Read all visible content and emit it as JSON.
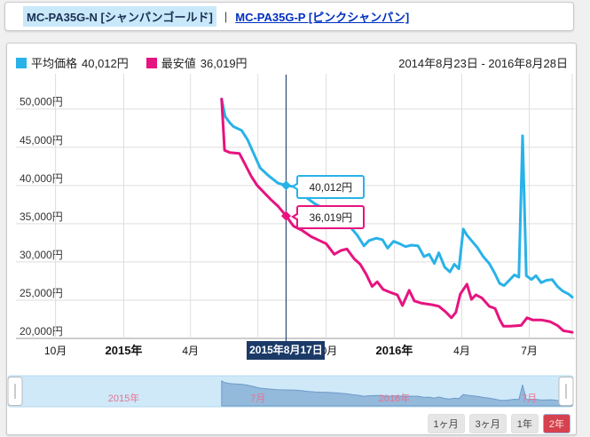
{
  "header": {
    "selected_product": "MC-PA35G-N [シャンパンゴールド]",
    "separator": "|",
    "linked_product": "MC-PA35G-P [ピンクシャンパン]"
  },
  "legend": {
    "average": {
      "label": "平均価格",
      "value": "40,012円",
      "color": "#29b2e8"
    },
    "lowest": {
      "label": "最安値",
      "value": "36,019円",
      "color": "#e7137f"
    }
  },
  "date_range": "2014年8月23日 - 2016年8月28日",
  "tooltips": {
    "average_price": "40,012円",
    "lowest_price": "36,019円",
    "date": "2015年8月17日"
  },
  "controls": {
    "period_options": [
      {
        "label": "1ヶ月",
        "active": false
      },
      {
        "label": "3ヶ月",
        "active": false
      },
      {
        "label": "1年",
        "active": false
      },
      {
        "label": "2年",
        "active": true
      }
    ]
  },
  "colors": {
    "average_line": "#29b2e8",
    "lowest_line": "#e7137f",
    "crosshair": "#2c4a70",
    "grid": "#dedede",
    "axis_bottom": "#999999",
    "navigator_bg": "#cfe9f9",
    "navigator_fill": "#93b9db",
    "navigator_line": "#6f9bca",
    "navigator_label": "#e8738f",
    "date_tooltip_bg": "#1c3a68",
    "active_button_bg": "#d6414f"
  },
  "chart_data": {
    "type": "line",
    "x_unit": "days_since_2014-08-23",
    "x_axis": {
      "range_days": [
        0,
        736
      ],
      "start_label": "2014年8月23日",
      "end_label": "2016年8月28日",
      "ticks": [
        {
          "label": "10月",
          "day": 39,
          "year": false
        },
        {
          "label": "2015年",
          "day": 131,
          "year": true
        },
        {
          "label": "4月",
          "day": 221,
          "year": false
        },
        {
          "label": "7月",
          "day": 312,
          "year": false
        },
        {
          "label": "10月",
          "day": 404,
          "year": false
        },
        {
          "label": "2016年",
          "day": 496,
          "year": true
        },
        {
          "label": "4月",
          "day": 587,
          "year": false
        },
        {
          "label": "7月",
          "day": 678,
          "year": false
        }
      ]
    },
    "y_axis": {
      "unit": "円",
      "range": [
        20000,
        54500
      ],
      "ticks": [
        {
          "value": 50000,
          "label": "50,000円"
        },
        {
          "value": 45000,
          "label": "45,000円"
        },
        {
          "value": 40000,
          "label": "40,000円"
        },
        {
          "value": 35000,
          "label": "35,000円"
        },
        {
          "value": 30000,
          "label": "30,000円"
        },
        {
          "value": 25000,
          "label": "25,000円"
        },
        {
          "value": 20000,
          "label": "20,000円"
        }
      ]
    },
    "series": [
      {
        "name": "平均価格",
        "color": "#29b2e8",
        "points": [
          [
            263,
            51300
          ],
          [
            268,
            49000
          ],
          [
            274,
            48200
          ],
          [
            279,
            47700
          ],
          [
            290,
            47200
          ],
          [
            298,
            46000
          ],
          [
            308,
            43800
          ],
          [
            315,
            42300
          ],
          [
            326,
            41300
          ],
          [
            339,
            40300
          ],
          [
            350,
            40012
          ],
          [
            363,
            39800
          ],
          [
            371,
            39200
          ],
          [
            379,
            38300
          ],
          [
            389,
            37600
          ],
          [
            399,
            37100
          ],
          [
            407,
            36900
          ],
          [
            419,
            36200
          ],
          [
            431,
            35400
          ],
          [
            439,
            34300
          ],
          [
            446,
            33500
          ],
          [
            455,
            32100
          ],
          [
            462,
            32800
          ],
          [
            472,
            33100
          ],
          [
            480,
            32900
          ],
          [
            487,
            31800
          ],
          [
            495,
            32700
          ],
          [
            503,
            32400
          ],
          [
            511,
            32000
          ],
          [
            519,
            32200
          ],
          [
            528,
            32100
          ],
          [
            536,
            30700
          ],
          [
            543,
            31000
          ],
          [
            550,
            29800
          ],
          [
            556,
            31200
          ],
          [
            564,
            29300
          ],
          [
            571,
            28700
          ],
          [
            577,
            29700
          ],
          [
            583,
            29100
          ],
          [
            589,
            34300
          ],
          [
            594,
            33500
          ],
          [
            600,
            32800
          ],
          [
            608,
            31900
          ],
          [
            616,
            30700
          ],
          [
            624,
            29800
          ],
          [
            631,
            28600
          ],
          [
            638,
            27200
          ],
          [
            644,
            26900
          ],
          [
            651,
            27600
          ],
          [
            658,
            28300
          ],
          [
            664,
            28000
          ],
          [
            669,
            46500
          ],
          [
            674,
            28200
          ],
          [
            681,
            27700
          ],
          [
            687,
            28200
          ],
          [
            694,
            27300
          ],
          [
            701,
            27600
          ],
          [
            709,
            27700
          ],
          [
            716,
            26800
          ],
          [
            723,
            26200
          ],
          [
            731,
            25800
          ],
          [
            736,
            25400
          ]
        ]
      },
      {
        "name": "最安値",
        "color": "#e7137f",
        "points": [
          [
            263,
            51300
          ],
          [
            267,
            44600
          ],
          [
            274,
            44300
          ],
          [
            287,
            44200
          ],
          [
            294,
            42900
          ],
          [
            303,
            41200
          ],
          [
            311,
            40000
          ],
          [
            320,
            39100
          ],
          [
            329,
            38200
          ],
          [
            339,
            37300
          ],
          [
            350,
            36019
          ],
          [
            360,
            34700
          ],
          [
            372,
            34100
          ],
          [
            384,
            33300
          ],
          [
            395,
            32800
          ],
          [
            404,
            32400
          ],
          [
            415,
            31000
          ],
          [
            424,
            31500
          ],
          [
            432,
            31700
          ],
          [
            442,
            30400
          ],
          [
            450,
            29700
          ],
          [
            458,
            28400
          ],
          [
            466,
            26800
          ],
          [
            473,
            27400
          ],
          [
            481,
            26400
          ],
          [
            491,
            26000
          ],
          [
            500,
            25700
          ],
          [
            507,
            24300
          ],
          [
            516,
            26300
          ],
          [
            523,
            24900
          ],
          [
            533,
            24600
          ],
          [
            547,
            24400
          ],
          [
            556,
            24200
          ],
          [
            565,
            23500
          ],
          [
            573,
            22700
          ],
          [
            579,
            23400
          ],
          [
            585,
            25800
          ],
          [
            594,
            27100
          ],
          [
            600,
            25100
          ],
          [
            606,
            25700
          ],
          [
            614,
            25300
          ],
          [
            624,
            24200
          ],
          [
            632,
            23900
          ],
          [
            638,
            22500
          ],
          [
            643,
            21600
          ],
          [
            652,
            21600
          ],
          [
            667,
            21700
          ],
          [
            675,
            22700
          ],
          [
            683,
            22400
          ],
          [
            695,
            22400
          ],
          [
            706,
            22200
          ],
          [
            716,
            21700
          ],
          [
            724,
            21000
          ],
          [
            731,
            20900
          ],
          [
            736,
            20800
          ]
        ]
      }
    ],
    "crosshair": {
      "day": 350,
      "date": "2015年8月17日",
      "average_value": 40012,
      "lowest_value": 36019
    },
    "navigator_labels": [
      {
        "label": "2015年",
        "day": 131
      },
      {
        "label": "7月",
        "day": 312
      },
      {
        "label": "2016年",
        "day": 496
      },
      {
        "label": "7月",
        "day": 678
      }
    ]
  }
}
